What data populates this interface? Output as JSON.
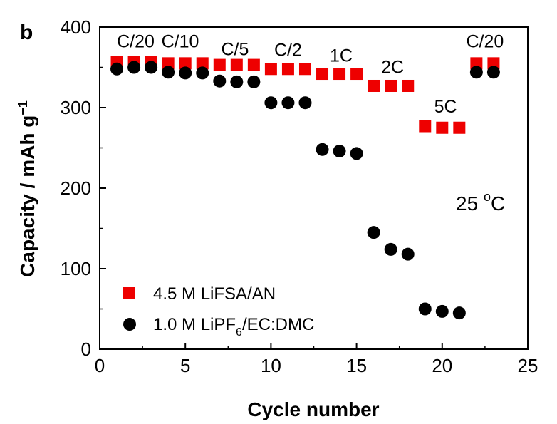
{
  "panel_label": "b",
  "chart_data": {
    "type": "scatter",
    "title": "",
    "xlabel": "Cycle number",
    "ylabel_main": "Capacity / mAh g",
    "ylabel_superscript": "−1",
    "xlim": [
      0,
      25
    ],
    "ylim": [
      0,
      400
    ],
    "xticks": [
      0,
      5,
      10,
      15,
      20,
      25
    ],
    "yticks": [
      0,
      100,
      200,
      300,
      400
    ],
    "grid": false,
    "legend_position": "bottom-left",
    "annotation_temp": {
      "value": "25 ",
      "sup": "o",
      "unit": "C"
    },
    "rate_labels": [
      {
        "text": "C/20",
        "x": 2.1,
        "y": 375
      },
      {
        "text": "C/10",
        "x": 4.7,
        "y": 375
      },
      {
        "text": "C/5",
        "x": 7.9,
        "y": 365
      },
      {
        "text": "C/2",
        "x": 11.0,
        "y": 364
      },
      {
        "text": "1C",
        "x": 14.1,
        "y": 357
      },
      {
        "text": "2C",
        "x": 17.1,
        "y": 343
      },
      {
        "text": "5C",
        "x": 20.2,
        "y": 294
      },
      {
        "text": "C/20",
        "x": 22.5,
        "y": 375
      }
    ],
    "series": [
      {
        "name": "4.5 M LiFSA/AN",
        "marker": "square",
        "color": "#ee0000",
        "x": [
          1,
          2,
          3,
          4,
          5,
          6,
          7,
          8,
          9,
          10,
          11,
          12,
          13,
          14,
          15,
          16,
          17,
          18,
          19,
          20,
          21,
          22,
          23
        ],
        "y": [
          357,
          357,
          357,
          355,
          355,
          355,
          353,
          353,
          353,
          348,
          348,
          348,
          342,
          342,
          342,
          327,
          327,
          327,
          277,
          275,
          275,
          355,
          355
        ]
      },
      {
        "name_main": "1.0 M LiPF",
        "name_sub": "6",
        "name_rest": "/EC:DMC",
        "marker": "circle",
        "color": "#000000",
        "x": [
          1,
          2,
          3,
          4,
          5,
          6,
          7,
          8,
          9,
          10,
          11,
          12,
          13,
          14,
          15,
          16,
          17,
          18,
          19,
          20,
          21,
          22,
          23
        ],
        "y": [
          348,
          350,
          350,
          344,
          343,
          343,
          333,
          332,
          332,
          306,
          306,
          306,
          248,
          246,
          243,
          145,
          124,
          118,
          50,
          47,
          45,
          344,
          344
        ]
      }
    ]
  }
}
